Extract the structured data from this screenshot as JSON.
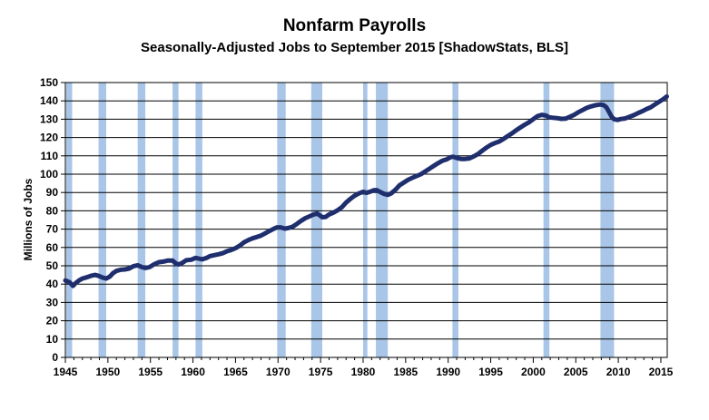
{
  "chart_data": {
    "type": "line",
    "title": "Nonfarm Payrolls",
    "subtitle": "Seasonally-Adjusted Jobs to September 2015 [ShadowStats, BLS]",
    "xlabel": "",
    "ylabel": "Millions of Jobs",
    "xlim": [
      1945,
      2015.75
    ],
    "ylim": [
      0,
      150
    ],
    "x_ticks": [
      1945,
      1950,
      1955,
      1960,
      1965,
      1970,
      1975,
      1980,
      1985,
      1990,
      1995,
      2000,
      2005,
      2010,
      2015
    ],
    "y_ticks": [
      0,
      10,
      20,
      30,
      40,
      50,
      60,
      70,
      80,
      90,
      100,
      110,
      120,
      130,
      140,
      150
    ],
    "grid": true,
    "recessions": [
      [
        1945.1,
        1945.8
      ],
      [
        1948.9,
        1949.8
      ],
      [
        1953.5,
        1954.4
      ],
      [
        1957.6,
        1958.3
      ],
      [
        1960.3,
        1961.1
      ],
      [
        1969.9,
        1970.9
      ],
      [
        1973.9,
        1975.2
      ],
      [
        1980.0,
        1980.5
      ],
      [
        1981.5,
        1982.9
      ],
      [
        1990.5,
        1991.2
      ],
      [
        2001.2,
        2001.9
      ],
      [
        2007.9,
        2009.5
      ]
    ],
    "series": [
      {
        "color": "#1f2f6e",
        "points": [
          [
            1945.0,
            42.0
          ],
          [
            1945.5,
            41.0
          ],
          [
            1945.9,
            39.0
          ],
          [
            1946.2,
            40.5
          ],
          [
            1946.6,
            42.0
          ],
          [
            1947.0,
            43.0
          ],
          [
            1947.5,
            43.7
          ],
          [
            1948.0,
            44.5
          ],
          [
            1948.5,
            45.0
          ],
          [
            1948.9,
            44.5
          ],
          [
            1949.4,
            43.5
          ],
          [
            1949.8,
            43.0
          ],
          [
            1950.2,
            44.0
          ],
          [
            1950.6,
            46.0
          ],
          [
            1951.0,
            47.2
          ],
          [
            1951.5,
            47.8
          ],
          [
            1952.0,
            48.0
          ],
          [
            1952.5,
            48.5
          ],
          [
            1953.0,
            49.8
          ],
          [
            1953.5,
            50.3
          ],
          [
            1954.0,
            49.3
          ],
          [
            1954.4,
            48.8
          ],
          [
            1954.9,
            49.3
          ],
          [
            1955.5,
            51.0
          ],
          [
            1956.0,
            52.0
          ],
          [
            1956.5,
            52.3
          ],
          [
            1957.0,
            52.8
          ],
          [
            1957.6,
            52.8
          ],
          [
            1958.0,
            51.3
          ],
          [
            1958.3,
            50.7
          ],
          [
            1958.7,
            51.5
          ],
          [
            1959.2,
            53.0
          ],
          [
            1959.8,
            53.3
          ],
          [
            1960.3,
            54.3
          ],
          [
            1960.8,
            53.8
          ],
          [
            1961.1,
            53.5
          ],
          [
            1961.6,
            54.3
          ],
          [
            1962.0,
            55.3
          ],
          [
            1962.5,
            55.8
          ],
          [
            1963.0,
            56.3
          ],
          [
            1963.5,
            56.9
          ],
          [
            1964.0,
            57.9
          ],
          [
            1964.5,
            58.6
          ],
          [
            1965.0,
            59.6
          ],
          [
            1965.5,
            61.0
          ],
          [
            1966.0,
            62.8
          ],
          [
            1966.5,
            64.0
          ],
          [
            1967.0,
            65.0
          ],
          [
            1967.5,
            65.7
          ],
          [
            1968.0,
            66.5
          ],
          [
            1968.5,
            67.7
          ],
          [
            1969.0,
            69.0
          ],
          [
            1969.5,
            70.2
          ],
          [
            1969.9,
            71.0
          ],
          [
            1970.3,
            71.0
          ],
          [
            1970.8,
            70.3
          ],
          [
            1971.2,
            70.6
          ],
          [
            1971.7,
            71.3
          ],
          [
            1972.2,
            72.8
          ],
          [
            1972.7,
            74.5
          ],
          [
            1973.2,
            76.0
          ],
          [
            1973.7,
            77.0
          ],
          [
            1974.2,
            78.0
          ],
          [
            1974.6,
            78.5
          ],
          [
            1974.9,
            77.5
          ],
          [
            1975.2,
            76.5
          ],
          [
            1975.6,
            76.7
          ],
          [
            1976.0,
            78.0
          ],
          [
            1976.5,
            79.0
          ],
          [
            1977.0,
            80.3
          ],
          [
            1977.5,
            82.0
          ],
          [
            1978.0,
            84.5
          ],
          [
            1978.5,
            86.5
          ],
          [
            1979.0,
            88.2
          ],
          [
            1979.5,
            89.5
          ],
          [
            1980.0,
            90.4
          ],
          [
            1980.4,
            89.8
          ],
          [
            1980.8,
            90.4
          ],
          [
            1981.3,
            91.3
          ],
          [
            1981.6,
            91.3
          ],
          [
            1982.0,
            90.3
          ],
          [
            1982.5,
            89.2
          ],
          [
            1982.9,
            88.7
          ],
          [
            1983.3,
            89.5
          ],
          [
            1983.8,
            91.5
          ],
          [
            1984.3,
            94.0
          ],
          [
            1984.8,
            95.5
          ],
          [
            1985.3,
            97.0
          ],
          [
            1985.8,
            98.0
          ],
          [
            1986.3,
            99.0
          ],
          [
            1986.8,
            100.0
          ],
          [
            1987.3,
            101.5
          ],
          [
            1987.8,
            103.0
          ],
          [
            1988.3,
            104.5
          ],
          [
            1988.8,
            106.0
          ],
          [
            1989.3,
            107.3
          ],
          [
            1989.8,
            108.0
          ],
          [
            1990.3,
            109.3
          ],
          [
            1990.6,
            109.5
          ],
          [
            1991.0,
            108.8
          ],
          [
            1991.5,
            108.3
          ],
          [
            1992.0,
            108.3
          ],
          [
            1992.5,
            108.6
          ],
          [
            1993.0,
            109.7
          ],
          [
            1993.5,
            111.0
          ],
          [
            1994.0,
            112.8
          ],
          [
            1994.5,
            114.5
          ],
          [
            1995.0,
            116.0
          ],
          [
            1995.5,
            117.0
          ],
          [
            1996.0,
            117.8
          ],
          [
            1996.5,
            119.2
          ],
          [
            1997.0,
            120.8
          ],
          [
            1997.5,
            122.3
          ],
          [
            1998.0,
            124.0
          ],
          [
            1998.5,
            125.5
          ],
          [
            1999.0,
            127.0
          ],
          [
            1999.5,
            128.3
          ],
          [
            2000.0,
            130.0
          ],
          [
            2000.5,
            131.7
          ],
          [
            2001.0,
            132.4
          ],
          [
            2001.5,
            132.0
          ],
          [
            2001.9,
            131.0
          ],
          [
            2002.3,
            130.8
          ],
          [
            2002.8,
            130.6
          ],
          [
            2003.3,
            130.2
          ],
          [
            2003.8,
            130.3
          ],
          [
            2004.3,
            131.3
          ],
          [
            2004.8,
            132.4
          ],
          [
            2005.3,
            133.8
          ],
          [
            2005.8,
            135.0
          ],
          [
            2006.3,
            136.2
          ],
          [
            2006.8,
            137.0
          ],
          [
            2007.3,
            137.6
          ],
          [
            2007.9,
            138.0
          ],
          [
            2008.3,
            137.6
          ],
          [
            2008.6,
            136.5
          ],
          [
            2008.9,
            134.0
          ],
          [
            2009.2,
            131.5
          ],
          [
            2009.5,
            130.0
          ],
          [
            2009.9,
            129.6
          ],
          [
            2010.3,
            130.1
          ],
          [
            2010.8,
            130.4
          ],
          [
            2011.3,
            131.3
          ],
          [
            2011.8,
            132.2
          ],
          [
            2012.3,
            133.3
          ],
          [
            2012.8,
            134.3
          ],
          [
            2013.3,
            135.5
          ],
          [
            2013.8,
            136.5
          ],
          [
            2014.3,
            138.0
          ],
          [
            2014.8,
            139.5
          ],
          [
            2015.3,
            141.0
          ],
          [
            2015.7,
            142.4
          ]
        ]
      }
    ]
  }
}
